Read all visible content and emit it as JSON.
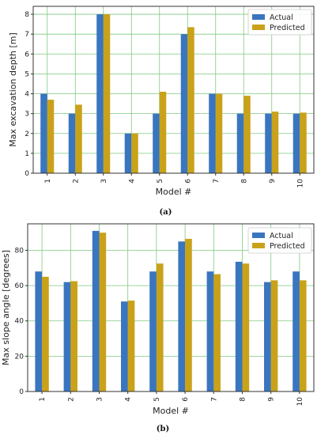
{
  "colors": {
    "actual": "#3a75bf",
    "predicted": "#c9a21a",
    "grid": "#7fc97f",
    "frame": "#333333"
  },
  "chart_data": [
    {
      "type": "bar",
      "panel_label": "(a)",
      "xlabel": "Model #",
      "ylabel": "Max excavation depth [m]",
      "categories": [
        "1",
        "2",
        "3",
        "4",
        "5",
        "6",
        "7",
        "8",
        "9",
        "10"
      ],
      "ylim": [
        0,
        8.4
      ],
      "yticks": [
        0,
        1,
        2,
        3,
        4,
        5,
        6,
        7,
        8
      ],
      "grid": true,
      "legend_position": "top-right",
      "series": [
        {
          "name": "Actual",
          "values": [
            4,
            3,
            8,
            2,
            3,
            7,
            4,
            3,
            3,
            3
          ]
        },
        {
          "name": "Predicted",
          "values": [
            3.7,
            3.45,
            8.0,
            2.0,
            4.1,
            7.35,
            4.0,
            3.9,
            3.1,
            3.05
          ]
        }
      ]
    },
    {
      "type": "bar",
      "panel_label": "(b)",
      "xlabel": "Model #",
      "ylabel": "Max slope angle [degrees]",
      "categories": [
        "1",
        "2",
        "3",
        "4",
        "5",
        "6",
        "7",
        "8",
        "9",
        "10"
      ],
      "ylim": [
        0,
        95
      ],
      "yticks": [
        0,
        20,
        40,
        60,
        80
      ],
      "grid": true,
      "legend_position": "top-right",
      "series": [
        {
          "name": "Actual",
          "values": [
            68,
            62,
            91,
            51,
            68,
            85,
            68,
            73.5,
            62,
            68
          ]
        },
        {
          "name": "Predicted",
          "values": [
            65,
            62.5,
            90,
            51.5,
            72.5,
            86.5,
            66.5,
            72.5,
            63,
            63
          ]
        }
      ]
    }
  ]
}
